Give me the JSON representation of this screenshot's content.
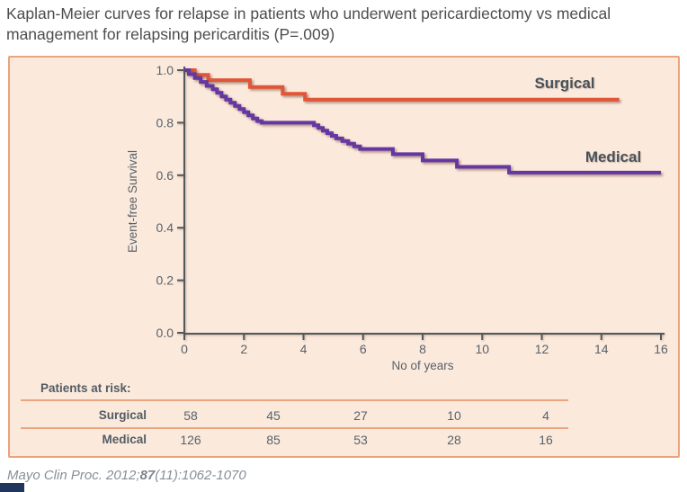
{
  "citation": {
    "prefix": "Mayo Clin Proc. 2012;",
    "volume": "87",
    "suffix": "(11):1062-1070"
  },
  "chart_data": {
    "type": "line",
    "subtype": "kaplan-meier-step",
    "title": "Kaplan-Meier curves for relapse in patients who underwent pericardiectomy vs medical management for relapsing pericarditis (P=.009)",
    "p_value": "P=.009",
    "xlabel": "No of years",
    "ylabel": "Event-free Survival",
    "xlim": [
      0,
      16
    ],
    "ylim": [
      0.0,
      1.0
    ],
    "xticks": [
      "0",
      "2",
      "4",
      "6",
      "8",
      "10",
      "12",
      "14",
      "16"
    ],
    "yticks": [
      "0.0",
      "0.2",
      "0.4",
      "0.6",
      "0.8",
      "1.0"
    ],
    "grid": false,
    "legend_position": "inline-right",
    "series": [
      {
        "name": "Surgical",
        "color": "#e05638",
        "steps": [
          [
            0,
            1.0
          ],
          [
            0.35,
            0.982
          ],
          [
            0.8,
            0.962
          ],
          [
            2.2,
            0.936
          ],
          [
            3.3,
            0.91
          ],
          [
            4.05,
            0.888
          ],
          [
            14.6,
            0.888
          ]
        ]
      },
      {
        "name": "Medical",
        "color": "#6537a2",
        "steps": [
          [
            0,
            1.0
          ],
          [
            0.15,
            0.985
          ],
          [
            0.35,
            0.97
          ],
          [
            0.55,
            0.955
          ],
          [
            0.75,
            0.94
          ],
          [
            0.95,
            0.927
          ],
          [
            1.1,
            0.914
          ],
          [
            1.25,
            0.9
          ],
          [
            1.4,
            0.888
          ],
          [
            1.55,
            0.876
          ],
          [
            1.7,
            0.864
          ],
          [
            1.85,
            0.852
          ],
          [
            2.0,
            0.84
          ],
          [
            2.15,
            0.828
          ],
          [
            2.3,
            0.816
          ],
          [
            2.45,
            0.806
          ],
          [
            2.6,
            0.8
          ],
          [
            4.35,
            0.79
          ],
          [
            4.5,
            0.78
          ],
          [
            4.65,
            0.77
          ],
          [
            4.8,
            0.76
          ],
          [
            4.95,
            0.75
          ],
          [
            5.1,
            0.74
          ],
          [
            5.3,
            0.73
          ],
          [
            5.5,
            0.72
          ],
          [
            5.7,
            0.71
          ],
          [
            5.9,
            0.7
          ],
          [
            7.0,
            0.68
          ],
          [
            8.0,
            0.656
          ],
          [
            9.15,
            0.632
          ],
          [
            10.9,
            0.61
          ],
          [
            16,
            0.61
          ]
        ]
      }
    ],
    "at_risk": {
      "header": "Patients at risk:",
      "years": [
        0,
        3,
        6,
        9,
        12
      ],
      "rows": [
        {
          "label": "Surgical",
          "values": [
            "58",
            "45",
            "27",
            "10",
            "4"
          ]
        },
        {
          "label": "Medical",
          "values": [
            "126",
            "85",
            "53",
            "28",
            "16"
          ]
        }
      ]
    },
    "colors": {
      "panel_background": "#fbe9dc",
      "panel_border": "#e9a47c",
      "axis": "#52595d",
      "title_text": "#4d4d4d",
      "label_text": "#47525a",
      "surgical": "#e05638",
      "medical": "#6537a2",
      "corner_bar": "#20365c"
    }
  }
}
